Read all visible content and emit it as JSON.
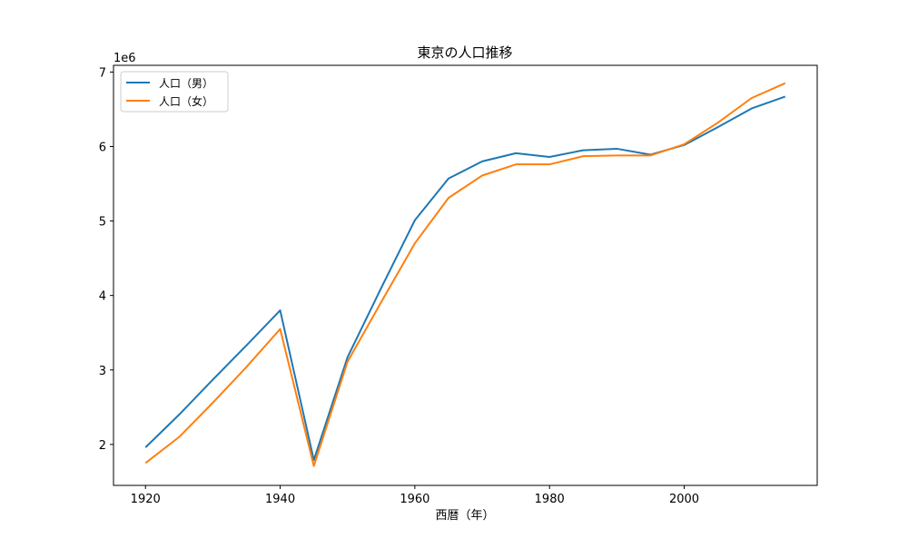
{
  "chart_data": {
    "type": "line",
    "title": "東京の人口推移",
    "xlabel": "西暦（年）",
    "ylabel": "",
    "y_offset_text": "1e6",
    "x": [
      1920,
      1925,
      1930,
      1935,
      1940,
      1945,
      1950,
      1955,
      1960,
      1965,
      1970,
      1975,
      1980,
      1985,
      1990,
      1995,
      2000,
      2005,
      2010,
      2015
    ],
    "series": [
      {
        "name": "人口（男）",
        "color": "#1f77b4",
        "values": [
          1960000,
          2400000,
          2870000,
          3330000,
          3800000,
          1790000,
          3170000,
          4100000,
          5010000,
          5570000,
          5800000,
          5910000,
          5860000,
          5950000,
          5970000,
          5890000,
          6020000,
          6260000,
          6510000,
          6670000
        ]
      },
      {
        "name": "人口（女）",
        "color": "#ff7f0e",
        "values": [
          1750000,
          2100000,
          2560000,
          3040000,
          3550000,
          1710000,
          3110000,
          3910000,
          4700000,
          5310000,
          5610000,
          5760000,
          5760000,
          5870000,
          5880000,
          5880000,
          6030000,
          6320000,
          6650000,
          6850000
        ]
      }
    ],
    "xticks": [
      "1920",
      "1940",
      "1960",
      "1980",
      "2000"
    ],
    "yticks": [
      "2",
      "3",
      "4",
      "5",
      "6",
      "7"
    ],
    "xlim": [
      1915.25,
      2019.75
    ],
    "ylim": [
      1450000,
      7090000
    ],
    "legend_position": "upper-left",
    "grid": false
  }
}
